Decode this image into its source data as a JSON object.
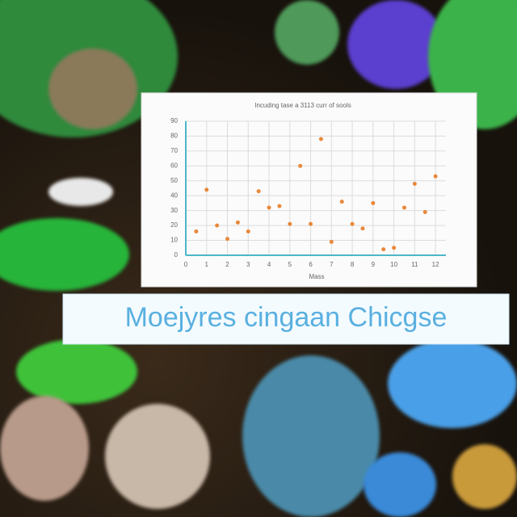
{
  "chart_data": {
    "type": "scatter",
    "title": "Incuding tase a 3113 curr of sools",
    "x_label": "Mass",
    "caption": "Moejyres cingaan Chicgse",
    "x": [
      0.5,
      1,
      1.5,
      2,
      2.5,
      3,
      3.5,
      4,
      4.5,
      5,
      5.5,
      6,
      6.5,
      7,
      7.5,
      8,
      8.5,
      9,
      9.5,
      10,
      10.5,
      11,
      11.5,
      12
    ],
    "values": [
      16,
      44,
      20,
      11,
      22,
      16,
      43,
      32,
      33,
      21,
      60,
      21,
      78,
      9,
      36,
      21,
      18,
      35,
      4,
      5,
      32,
      48,
      29,
      53
    ],
    "color": "#e8883a",
    "xlim": [
      0,
      12.5
    ],
    "xticks": [
      0,
      1,
      2,
      3,
      4,
      5,
      6,
      7,
      8,
      9,
      10,
      11,
      12
    ],
    "ylim": [
      0,
      90
    ],
    "yticks": [
      0,
      10,
      20,
      30,
      40,
      50,
      60,
      70,
      80,
      90
    ],
    "grid": true
  }
}
